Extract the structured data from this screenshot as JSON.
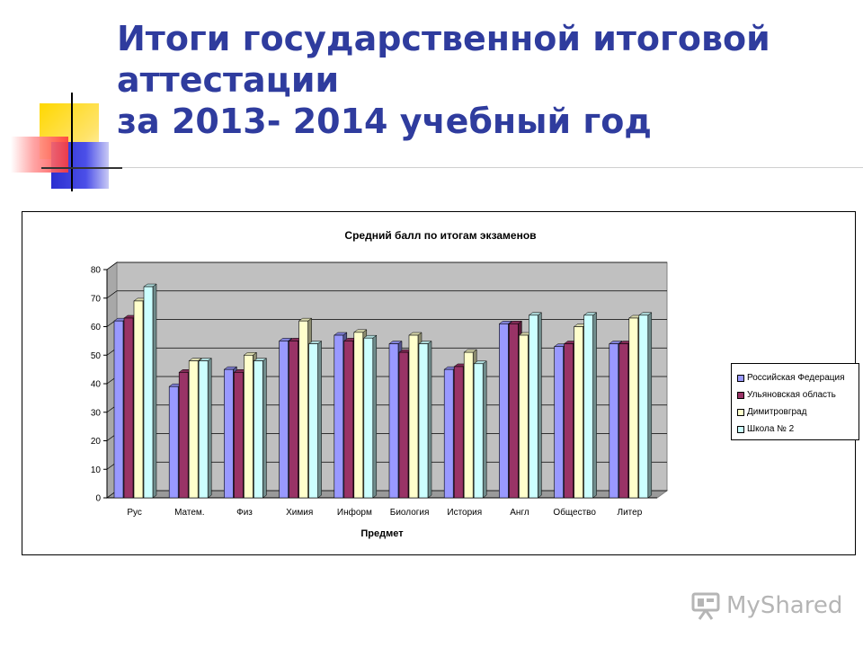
{
  "slide": {
    "title_lines": [
      "Итоги государственной итоговой",
      "аттестации",
      "за 2013- 2014 учебный год"
    ],
    "title_color": "#2f3c9e"
  },
  "watermark": {
    "text_a": "My",
    "text_b": "Shared",
    "icon": "presentation-board-icon"
  },
  "chart_data": {
    "type": "bar",
    "title": "Средний балл по итогам экзаменов",
    "xlabel": "Предмет",
    "ylabel": "",
    "ylim": [
      0,
      80
    ],
    "yticks": [
      0,
      10,
      20,
      30,
      40,
      50,
      60,
      70,
      80
    ],
    "grid": true,
    "legend_position": "right",
    "categories": [
      "Рус",
      "Матем.",
      "Физ",
      "Химия",
      "Информ",
      "Биология",
      "История",
      "Англ",
      "Общество",
      "Литер"
    ],
    "series": [
      {
        "name": "Российская Федерация",
        "color": "#9999ff",
        "values": [
          62,
          39,
          45,
          55,
          57,
          54,
          45,
          61,
          53,
          54
        ]
      },
      {
        "name": "Ульяновская область",
        "color": "#993366",
        "values": [
          63,
          44,
          44,
          55,
          55,
          51,
          46,
          61,
          54,
          54
        ]
      },
      {
        "name": "Димитровград",
        "color": "#ffffcc",
        "values": [
          69,
          48,
          50,
          62,
          58,
          57,
          51,
          57,
          60,
          63
        ]
      },
      {
        "name": "Школа № 2",
        "color": "#ccffff",
        "values": [
          74,
          48,
          48,
          54,
          56,
          54,
          47,
          64,
          64,
          64
        ]
      }
    ]
  }
}
